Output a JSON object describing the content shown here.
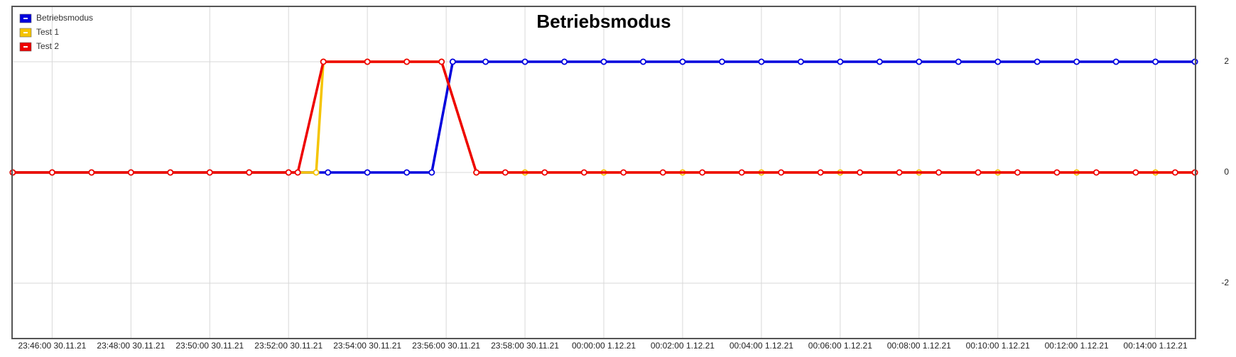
{
  "chart_data": {
    "type": "line",
    "title": "Betriebsmodus",
    "xlim": [
      "23:44:59 30.11.21",
      "00:15:01 1.12.21"
    ],
    "xticks": [
      "23:46:00 30.11.21",
      "23:48:00 30.11.21",
      "23:50:00 30.11.21",
      "23:52:00 30.11.21",
      "23:54:00 30.11.21",
      "23:56:00 30.11.21",
      "23:58:00 30.11.21",
      "00:00:00 1.12.21",
      "00:02:00 1.12.21",
      "00:04:00 1.12.21",
      "00:06:00 1.12.21",
      "00:08:00 1.12.21",
      "00:10:00 1.12.21",
      "00:12:00 1.12.21",
      "00:14:00 1.12.21"
    ],
    "ylim": [
      -3,
      3
    ],
    "yticks": [
      -2,
      0,
      2
    ],
    "grid": true,
    "legend": "top-left",
    "series": [
      {
        "name": "Betriebsmodus",
        "color": "#0000dd",
        "x": [
          "23:45:00 30.11.21",
          "23:46:00 30.11.21",
          "23:47:00 30.11.21",
          "23:48:00 30.11.21",
          "23:49:00 30.11.21",
          "23:50:00 30.11.21",
          "23:51:00 30.11.21",
          "23:52:00 30.11.21",
          "23:53:00 30.11.21",
          "23:54:00 30.11.21",
          "23:55:00 30.11.21",
          "23:55:38 30.11.21",
          "23:56:10 30.11.21",
          "23:57:00 30.11.21",
          "23:58:00 30.11.21",
          "23:59:00 30.11.21",
          "00:00:00 1.12.21",
          "00:01:00 1.12.21",
          "00:02:00 1.12.21",
          "00:03:00 1.12.21",
          "00:04:00 1.12.21",
          "00:05:00 1.12.21",
          "00:06:00 1.12.21",
          "00:07:00 1.12.21",
          "00:08:00 1.12.21",
          "00:09:00 1.12.21",
          "00:10:00 1.12.21",
          "00:11:00 1.12.21",
          "00:12:00 1.12.21",
          "00:13:00 1.12.21",
          "00:14:00 1.12.21",
          "00:15:00 1.12.21"
        ],
        "values": [
          0,
          0,
          0,
          0,
          0,
          0,
          0,
          0,
          0,
          0,
          0,
          0,
          2,
          2,
          2,
          2,
          2,
          2,
          2,
          2,
          2,
          2,
          2,
          2,
          2,
          2,
          2,
          2,
          2,
          2,
          2,
          2
        ]
      },
      {
        "name": "Test 1",
        "color": "#f5c400",
        "x": [
          "23:45:00 30.11.21",
          "23:46:00 30.11.21",
          "23:47:00 30.11.21",
          "23:48:00 30.11.21",
          "23:49:00 30.11.21",
          "23:50:00 30.11.21",
          "23:51:00 30.11.21",
          "23:52:00 30.11.21",
          "23:52:42 30.11.21",
          "23:52:53 30.11.21",
          "23:54:00 30.11.21",
          "23:55:00 30.11.21",
          "23:55:53 30.11.21",
          "23:56:46 30.11.21",
          "23:58:00 30.11.21",
          "00:00:00 1.12.21",
          "00:02:00 1.12.21",
          "00:04:00 1.12.21",
          "00:06:00 1.12.21",
          "00:08:00 1.12.21",
          "00:10:00 1.12.21",
          "00:12:00 1.12.21",
          "00:14:00 1.12.21",
          "00:15:00 1.12.21"
        ],
        "values": [
          0,
          0,
          0,
          0,
          0,
          0,
          0,
          0,
          0,
          2,
          2,
          2,
          2,
          0,
          0,
          0,
          0,
          0,
          0,
          0,
          0,
          0,
          0,
          0
        ]
      },
      {
        "name": "Test 2",
        "color": "#ee0000",
        "x": [
          "23:45:00 30.11.21",
          "23:46:00 30.11.21",
          "23:47:00 30.11.21",
          "23:48:00 30.11.21",
          "23:49:00 30.11.21",
          "23:50:00 30.11.21",
          "23:51:00 30.11.21",
          "23:52:00 30.11.21",
          "23:52:14 30.11.21",
          "23:52:53 30.11.21",
          "23:54:00 30.11.21",
          "23:55:00 30.11.21",
          "23:55:53 30.11.21",
          "23:56:46 30.11.21",
          "23:57:30 30.11.21",
          "23:58:30 30.11.21",
          "23:59:30 30.11.21",
          "00:00:30 1.12.21",
          "00:01:30 1.12.21",
          "00:02:30 1.12.21",
          "00:03:30 1.12.21",
          "00:04:30 1.12.21",
          "00:05:30 1.12.21",
          "00:06:30 1.12.21",
          "00:07:30 1.12.21",
          "00:08:30 1.12.21",
          "00:09:30 1.12.21",
          "00:10:30 1.12.21",
          "00:11:30 1.12.21",
          "00:12:30 1.12.21",
          "00:13:30 1.12.21",
          "00:14:30 1.12.21",
          "00:15:00 1.12.21"
        ],
        "values": [
          0,
          0,
          0,
          0,
          0,
          0,
          0,
          0,
          0,
          2,
          2,
          2,
          2,
          0,
          0,
          0,
          0,
          0,
          0,
          0,
          0,
          0,
          0,
          0,
          0,
          0,
          0,
          0,
          0,
          0,
          0,
          0,
          0
        ]
      }
    ]
  }
}
